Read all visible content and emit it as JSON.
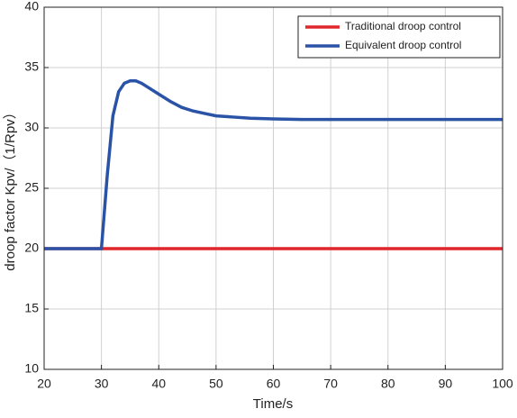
{
  "chart_data": {
    "type": "line",
    "x_label": "Time/s",
    "y_label": "droop factor Kpv/（1/Rpv）",
    "x": [
      20,
      30,
      31,
      32,
      33,
      34,
      35,
      36,
      37,
      38,
      40,
      42,
      44,
      46,
      48,
      50,
      53,
      56,
      60,
      65,
      100
    ],
    "series": [
      {
        "name": "Traditional droop control",
        "color": "#e0262a",
        "values": [
          20,
          20,
          20,
          20,
          20,
          20,
          20,
          20,
          20,
          20,
          20,
          20,
          20,
          20,
          20,
          20,
          20,
          20,
          20,
          20,
          20
        ]
      },
      {
        "name": "Equivalent droop control",
        "color": "#2a53a8",
        "values": [
          20,
          20,
          26,
          31,
          33,
          33.7,
          33.9,
          33.9,
          33.7,
          33.4,
          32.8,
          32.2,
          31.7,
          31.4,
          31.2,
          31.0,
          30.9,
          30.8,
          30.75,
          30.7,
          30.7
        ]
      }
    ],
    "xlim": [
      20,
      100
    ],
    "xticks": [
      20,
      30,
      40,
      50,
      60,
      70,
      80,
      90,
      100
    ],
    "ylim": [
      10,
      40
    ],
    "yticks": [
      10,
      15,
      20,
      25,
      30,
      35,
      40
    ],
    "grid": true,
    "legend": "top-right"
  }
}
